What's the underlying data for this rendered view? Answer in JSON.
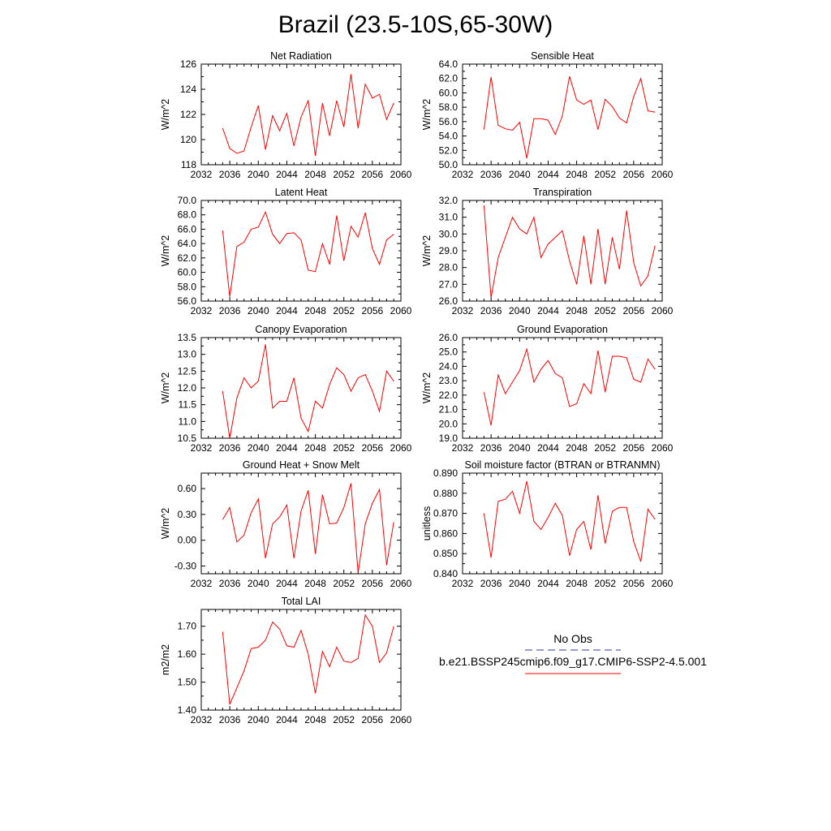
{
  "title": "Brazil (23.5-10S,65-30W)",
  "colors": {
    "model": "#ff0000",
    "obs": "#3333aa"
  },
  "legend": {
    "obs_label": "No Obs",
    "model_label": "b.e21.BSSP245cmip6.f09_g17.CMIP6-SSP2-4.5.001"
  },
  "chart_data": [
    {
      "type": "line",
      "title": "Net Radiation",
      "ylabel": "W/m^2",
      "xlim": [
        2032,
        2060
      ],
      "ylim": [
        118,
        126
      ],
      "xticks": [
        "2032",
        "2036",
        "2040",
        "2044",
        "2048",
        "2052",
        "2056",
        "2060"
      ],
      "yticks": [
        "118",
        "120",
        "122",
        "124",
        "126"
      ],
      "x": [
        2035,
        2036,
        2037,
        2038,
        2039,
        2040,
        2041,
        2042,
        2043,
        2044,
        2045,
        2046,
        2047,
        2048,
        2049,
        2050,
        2051,
        2052,
        2053,
        2054,
        2055,
        2056,
        2057,
        2058,
        2059
      ],
      "series": [
        {
          "values": [
            120.9,
            119.3,
            118.9,
            119.1,
            121.0,
            122.7,
            119.2,
            121.9,
            120.7,
            122.1,
            119.5,
            121.8,
            123.1,
            118.7,
            122.9,
            120.3,
            123.1,
            121.0,
            125.2,
            120.9,
            124.4,
            123.3,
            123.6,
            121.6,
            122.9
          ]
        }
      ]
    },
    {
      "type": "line",
      "title": "Sensible Heat",
      "ylabel": "W/m^2",
      "xlim": [
        2032,
        2060
      ],
      "ylim": [
        50,
        64
      ],
      "xticks": [
        "2032",
        "2036",
        "2040",
        "2044",
        "2048",
        "2052",
        "2056",
        "2060"
      ],
      "yticks": [
        "50.0",
        "52.0",
        "54.0",
        "56.0",
        "58.0",
        "60.0",
        "62.0",
        "64.0"
      ],
      "x": [
        2035,
        2036,
        2037,
        2038,
        2039,
        2040,
        2041,
        2042,
        2043,
        2044,
        2045,
        2046,
        2047,
        2048,
        2049,
        2050,
        2051,
        2052,
        2053,
        2054,
        2055,
        2056,
        2057,
        2058,
        2059
      ],
      "series": [
        {
          "values": [
            54.9,
            62.2,
            55.5,
            55.0,
            54.8,
            55.9,
            50.9,
            56.4,
            56.4,
            56.2,
            54.2,
            56.8,
            62.3,
            59.0,
            58.4,
            59.0,
            54.9,
            59.1,
            58.1,
            56.5,
            55.8,
            59.5,
            62.0,
            57.5,
            57.3
          ]
        }
      ]
    },
    {
      "type": "line",
      "title": "Latent Heat",
      "ylabel": "W/m^2",
      "xlim": [
        2032,
        2060
      ],
      "ylim": [
        56,
        70
      ],
      "xticks": [
        "2032",
        "2036",
        "2040",
        "2044",
        "2048",
        "2052",
        "2056",
        "2060"
      ],
      "yticks": [
        "56.0",
        "58.0",
        "60.0",
        "62.0",
        "64.0",
        "66.0",
        "68.0",
        "70.0"
      ],
      "x": [
        2035,
        2036,
        2037,
        2038,
        2039,
        2040,
        2041,
        2042,
        2043,
        2044,
        2045,
        2046,
        2047,
        2048,
        2049,
        2050,
        2051,
        2052,
        2053,
        2054,
        2055,
        2056,
        2057,
        2058,
        2059
      ],
      "series": [
        {
          "values": [
            65.8,
            56.6,
            63.6,
            64.2,
            66.0,
            66.3,
            68.4,
            65.3,
            64.0,
            65.4,
            65.5,
            64.5,
            60.3,
            60.1,
            64.0,
            61.1,
            67.9,
            61.6,
            66.4,
            64.9,
            68.3,
            63.3,
            61.1,
            64.5,
            65.3
          ]
        }
      ]
    },
    {
      "type": "line",
      "title": "Transpiration",
      "ylabel": "W/m^2",
      "xlim": [
        2032,
        2060
      ],
      "ylim": [
        26,
        32
      ],
      "xticks": [
        "2032",
        "2036",
        "2040",
        "2044",
        "2048",
        "2052",
        "2056",
        "2060"
      ],
      "yticks": [
        "26.0",
        "27.0",
        "28.0",
        "29.0",
        "30.0",
        "31.0",
        "32.0"
      ],
      "x": [
        2035,
        2036,
        2037,
        2038,
        2039,
        2040,
        2041,
        2042,
        2043,
        2044,
        2045,
        2046,
        2047,
        2048,
        2049,
        2050,
        2051,
        2052,
        2053,
        2054,
        2055,
        2056,
        2057,
        2058,
        2059
      ],
      "series": [
        {
          "values": [
            31.7,
            26.2,
            28.6,
            29.8,
            31.0,
            30.3,
            30.0,
            31.0,
            28.6,
            29.4,
            29.8,
            30.2,
            28.4,
            27.0,
            29.9,
            27.0,
            30.3,
            27.0,
            29.8,
            27.9,
            31.4,
            28.3,
            26.9,
            27.5,
            29.3
          ]
        }
      ]
    },
    {
      "type": "line",
      "title": "Canopy Evaporation",
      "ylabel": "W/m^2",
      "xlim": [
        2032,
        2060
      ],
      "ylim": [
        10.5,
        13.5
      ],
      "xticks": [
        "2032",
        "2036",
        "2040",
        "2044",
        "2048",
        "2052",
        "2056",
        "2060"
      ],
      "yticks": [
        "10.5",
        "11.0",
        "11.5",
        "12.0",
        "12.5",
        "13.0",
        "13.5"
      ],
      "x": [
        2035,
        2036,
        2037,
        2038,
        2039,
        2040,
        2041,
        2042,
        2043,
        2044,
        2045,
        2046,
        2047,
        2048,
        2049,
        2050,
        2051,
        2052,
        2053,
        2054,
        2055,
        2056,
        2057,
        2058,
        2059
      ],
      "series": [
        {
          "values": [
            11.9,
            10.5,
            11.7,
            12.3,
            12.0,
            12.2,
            13.3,
            11.4,
            11.6,
            11.6,
            12.3,
            11.1,
            10.7,
            11.6,
            11.4,
            12.1,
            12.6,
            12.4,
            11.9,
            12.3,
            12.4,
            11.9,
            11.3,
            12.5,
            12.2
          ]
        }
      ]
    },
    {
      "type": "line",
      "title": "Ground Evaporation",
      "ylabel": "W/m^2",
      "xlim": [
        2032,
        2060
      ],
      "ylim": [
        19,
        26
      ],
      "xticks": [
        "2032",
        "2036",
        "2040",
        "2044",
        "2048",
        "2052",
        "2056",
        "2060"
      ],
      "yticks": [
        "19.0",
        "20.0",
        "21.0",
        "22.0",
        "23.0",
        "24.0",
        "25.0",
        "26.0"
      ],
      "x": [
        2035,
        2036,
        2037,
        2038,
        2039,
        2040,
        2041,
        2042,
        2043,
        2044,
        2045,
        2046,
        2047,
        2048,
        2049,
        2050,
        2051,
        2052,
        2053,
        2054,
        2055,
        2056,
        2057,
        2058,
        2059
      ],
      "series": [
        {
          "values": [
            22.2,
            19.9,
            23.4,
            22.1,
            22.9,
            23.7,
            25.2,
            22.9,
            23.8,
            24.4,
            23.5,
            23.2,
            21.2,
            21.4,
            22.8,
            22.1,
            25.1,
            22.2,
            24.7,
            24.7,
            24.6,
            23.1,
            22.9,
            24.5,
            23.8
          ]
        }
      ]
    },
    {
      "type": "line",
      "title": "Ground Heat + Snow Melt",
      "ylabel": "W/m^2",
      "xlim": [
        2032,
        2060
      ],
      "ylim": [
        -0.39,
        0.78
      ],
      "xticks": [
        "2032",
        "2036",
        "2040",
        "2044",
        "2048",
        "2052",
        "2056",
        "2060"
      ],
      "yticks": [
        "-0.30",
        "0.00",
        "0.30",
        "0.60"
      ],
      "ytick_values": [
        -0.3,
        0.0,
        0.3,
        0.6
      ],
      "x": [
        2035,
        2036,
        2037,
        2038,
        2039,
        2040,
        2041,
        2042,
        2043,
        2044,
        2045,
        2046,
        2047,
        2048,
        2049,
        2050,
        2051,
        2052,
        2053,
        2054,
        2055,
        2056,
        2057,
        2058,
        2059
      ],
      "series": [
        {
          "values": [
            0.24,
            0.38,
            -0.02,
            0.06,
            0.32,
            0.48,
            -0.21,
            0.19,
            0.27,
            0.41,
            -0.21,
            0.34,
            0.58,
            -0.16,
            0.53,
            0.19,
            0.2,
            0.38,
            0.66,
            -0.38,
            0.19,
            0.43,
            0.59,
            -0.29,
            0.21
          ]
        }
      ]
    },
    {
      "type": "line",
      "title": "Soil moisture factor (BTRAN or BTRANMN)",
      "ylabel": "unitless",
      "xlim": [
        2032,
        2060
      ],
      "ylim": [
        0.84,
        0.89
      ],
      "xticks": [
        "2032",
        "2036",
        "2040",
        "2044",
        "2048",
        "2052",
        "2056",
        "2060"
      ],
      "yticks": [
        "0.840",
        "0.850",
        "0.860",
        "0.870",
        "0.880",
        "0.890"
      ],
      "x": [
        2035,
        2036,
        2037,
        2038,
        2039,
        2040,
        2041,
        2042,
        2043,
        2044,
        2045,
        2046,
        2047,
        2048,
        2049,
        2050,
        2051,
        2052,
        2053,
        2054,
        2055,
        2056,
        2057,
        2058,
        2059
      ],
      "series": [
        {
          "values": [
            0.87,
            0.848,
            0.876,
            0.877,
            0.881,
            0.87,
            0.886,
            0.866,
            0.862,
            0.868,
            0.875,
            0.869,
            0.849,
            0.862,
            0.866,
            0.852,
            0.879,
            0.855,
            0.871,
            0.873,
            0.873,
            0.856,
            0.846,
            0.872,
            0.867
          ]
        }
      ]
    },
    {
      "type": "line",
      "title": "Total LAI",
      "ylabel": "m2/m2",
      "xlim": [
        2032,
        2060
      ],
      "ylim": [
        1.4,
        1.76
      ],
      "xticks": [
        "2032",
        "2036",
        "2040",
        "2044",
        "2048",
        "2052",
        "2056",
        "2060"
      ],
      "yticks": [
        "1.40",
        "1.50",
        "1.60",
        "1.70"
      ],
      "ytick_values": [
        1.4,
        1.5,
        1.6,
        1.7
      ],
      "x": [
        2035,
        2036,
        2037,
        2038,
        2039,
        2040,
        2041,
        2042,
        2043,
        2044,
        2045,
        2046,
        2047,
        2048,
        2049,
        2050,
        2051,
        2052,
        2053,
        2054,
        2055,
        2056,
        2057,
        2058,
        2059
      ],
      "series": [
        {
          "values": [
            1.68,
            1.42,
            1.48,
            1.54,
            1.62,
            1.625,
            1.65,
            1.715,
            1.69,
            1.63,
            1.625,
            1.685,
            1.6,
            1.46,
            1.61,
            1.555,
            1.625,
            1.575,
            1.57,
            1.585,
            1.74,
            1.7,
            1.57,
            1.605,
            1.7
          ]
        }
      ]
    }
  ]
}
